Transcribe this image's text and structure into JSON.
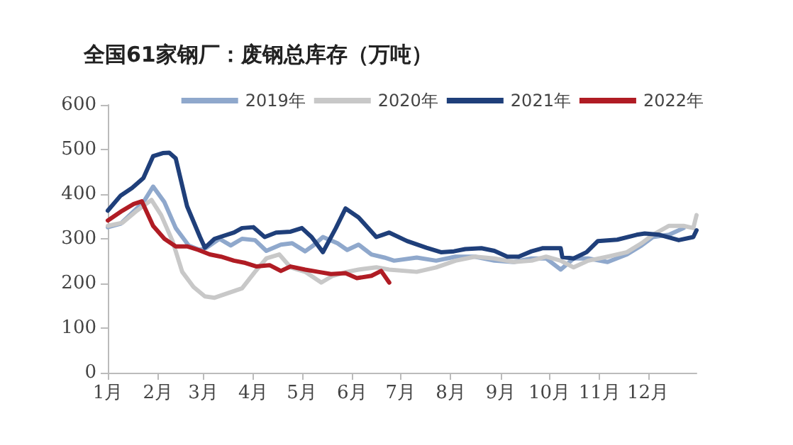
{
  "chart_data": {
    "type": "line",
    "title": "全国61家钢厂：废钢总库存（万吨）",
    "xlim": [
      "--01-01",
      "--12-31"
    ],
    "xticks": [
      {
        "value": "--01-01",
        "label": "1月"
      },
      {
        "value": "--02-01",
        "label": "2月"
      },
      {
        "value": "--03-01",
        "label": "3月"
      },
      {
        "value": "--04-01",
        "label": "4月"
      },
      {
        "value": "--05-01",
        "label": "5月"
      },
      {
        "value": "--06-01",
        "label": "6月"
      },
      {
        "value": "--07-01",
        "label": "7月"
      },
      {
        "value": "--08-01",
        "label": "8月"
      },
      {
        "value": "--09-01",
        "label": "9月"
      },
      {
        "value": "--10-01",
        "label": "10月"
      },
      {
        "value": "--11-01",
        "label": "11月"
      },
      {
        "value": "--12-01",
        "label": "12月"
      }
    ],
    "ylim": [
      0,
      600
    ],
    "yticks": [
      0,
      100,
      200,
      300,
      400,
      500,
      600
    ],
    "grid": false,
    "legend": "top right",
    "marker": "none",
    "line_style": "solid",
    "series": [
      {
        "name": "2019年",
        "color": "#8fa8cc",
        "x": [
          "--01-01",
          "--01-09",
          "--01-16",
          "--01-23",
          "--01-29",
          "--02-05",
          "--02-12",
          "--02-20",
          "--02-27",
          "--03-03",
          "--03-11",
          "--03-18",
          "--03-25",
          "--04-02",
          "--04-09",
          "--04-18",
          "--04-25",
          "--05-03",
          "--05-08",
          "--05-14",
          "--05-23",
          "--05-29",
          "--06-05",
          "--06-13",
          "--06-21",
          "--06-27",
          "--07-11",
          "--07-23",
          "--08-04",
          "--08-16",
          "--08-28",
          "--09-09",
          "--09-20",
          "--09-29",
          "--10-08",
          "--10-16",
          "--10-25",
          "--11-06",
          "--11-18",
          "--11-27",
          "--12-04",
          "--12-14",
          "--12-23"
        ],
        "values": [
          326,
          334,
          358,
          382,
          417,
          382,
          324,
          285,
          275,
          280,
          300,
          285,
          300,
          297,
          273,
          287,
          290,
          272,
          285,
          304,
          290,
          275,
          287,
          265,
          258,
          251,
          258,
          251,
          260,
          260,
          251,
          248,
          256,
          256,
          231,
          256,
          256,
          248,
          265,
          285,
          304,
          309,
          324
        ]
      },
      {
        "name": "2020年",
        "color": "#c8c8c8",
        "x": [
          "--01-01",
          "--01-10",
          "--01-19",
          "--01-28",
          "--02-03",
          "--02-10",
          "--02-16",
          "--02-23",
          "--03-02",
          "--03-08",
          "--03-16",
          "--03-25",
          "--04-02",
          "--04-09",
          "--04-17",
          "--04-24",
          "--05-03",
          "--05-13",
          "--05-20",
          "--05-29",
          "--06-05",
          "--06-16",
          "--06-24",
          "--07-11",
          "--07-23",
          "--08-04",
          "--08-16",
          "--08-28",
          "--09-09",
          "--09-20",
          "--09-29",
          "--10-08",
          "--10-16",
          "--10-25",
          "--11-06",
          "--11-18",
          "--11-27",
          "--12-04",
          "--12-14",
          "--12-23",
          "--12-29",
          "--12-31"
        ],
        "values": [
          329,
          336,
          363,
          387,
          353,
          295,
          226,
          192,
          171,
          168,
          178,
          189,
          226,
          256,
          265,
          236,
          226,
          202,
          217,
          226,
          231,
          236,
          231,
          226,
          236,
          251,
          260,
          256,
          248,
          251,
          260,
          251,
          236,
          251,
          260,
          270,
          290,
          309,
          329,
          329,
          324,
          353
        ]
      },
      {
        "name": "2021年",
        "color": "#1f3f7a",
        "x": [
          "--01-01",
          "--01-09",
          "--01-16",
          "--01-23",
          "--01-29",
          "--02-04",
          "--02-08",
          "--02-12",
          "--02-19",
          "--02-27",
          "--03-02",
          "--03-08",
          "--03-20",
          "--03-25",
          "--04-01",
          "--04-08",
          "--04-15",
          "--04-24",
          "--05-01",
          "--05-07",
          "--05-14",
          "--05-22",
          "--05-28",
          "--06-05",
          "--06-16",
          "--06-20",
          "--06-24",
          "--07-05",
          "--07-17",
          "--07-26",
          "--08-03",
          "--08-10",
          "--08-20",
          "--08-28",
          "--09-05",
          "--09-12",
          "--09-20",
          "--09-27",
          "--10-08",
          "--10-09",
          "--10-16",
          "--10-24",
          "--10-31",
          "--11-12",
          "--11-24",
          "--11-29",
          "--12-08",
          "--12-20",
          "--12-29",
          "--12-31"
        ],
        "values": [
          363,
          397,
          414,
          436,
          485,
          492,
          493,
          480,
          373,
          304,
          280,
          300,
          314,
          324,
          326,
          304,
          314,
          316,
          324,
          304,
          270,
          324,
          368,
          348,
          304,
          309,
          314,
          295,
          280,
          270,
          272,
          277,
          279,
          273,
          260,
          260,
          272,
          279,
          279,
          259,
          256,
          270,
          295,
          298,
          309,
          312,
          309,
          297,
          304,
          319
        ]
      },
      {
        "name": "2022年",
        "color": "#b01c24",
        "x": [
          "--01-01",
          "--01-10",
          "--01-17",
          "--01-22",
          "--01-29",
          "--02-05",
          "--02-12",
          "--02-19",
          "--02-26",
          "--03-05",
          "--03-12",
          "--03-20",
          "--03-27",
          "--04-03",
          "--04-11",
          "--04-18",
          "--04-24",
          "--05-03",
          "--05-11",
          "--05-19",
          "--05-28",
          "--06-04",
          "--06-13",
          "--06-19",
          "--06-24"
        ],
        "values": [
          341,
          363,
          378,
          384,
          329,
          300,
          283,
          283,
          275,
          265,
          260,
          251,
          246,
          238,
          241,
          228,
          238,
          231,
          226,
          221,
          223,
          212,
          217,
          228,
          202
        ]
      }
    ]
  }
}
